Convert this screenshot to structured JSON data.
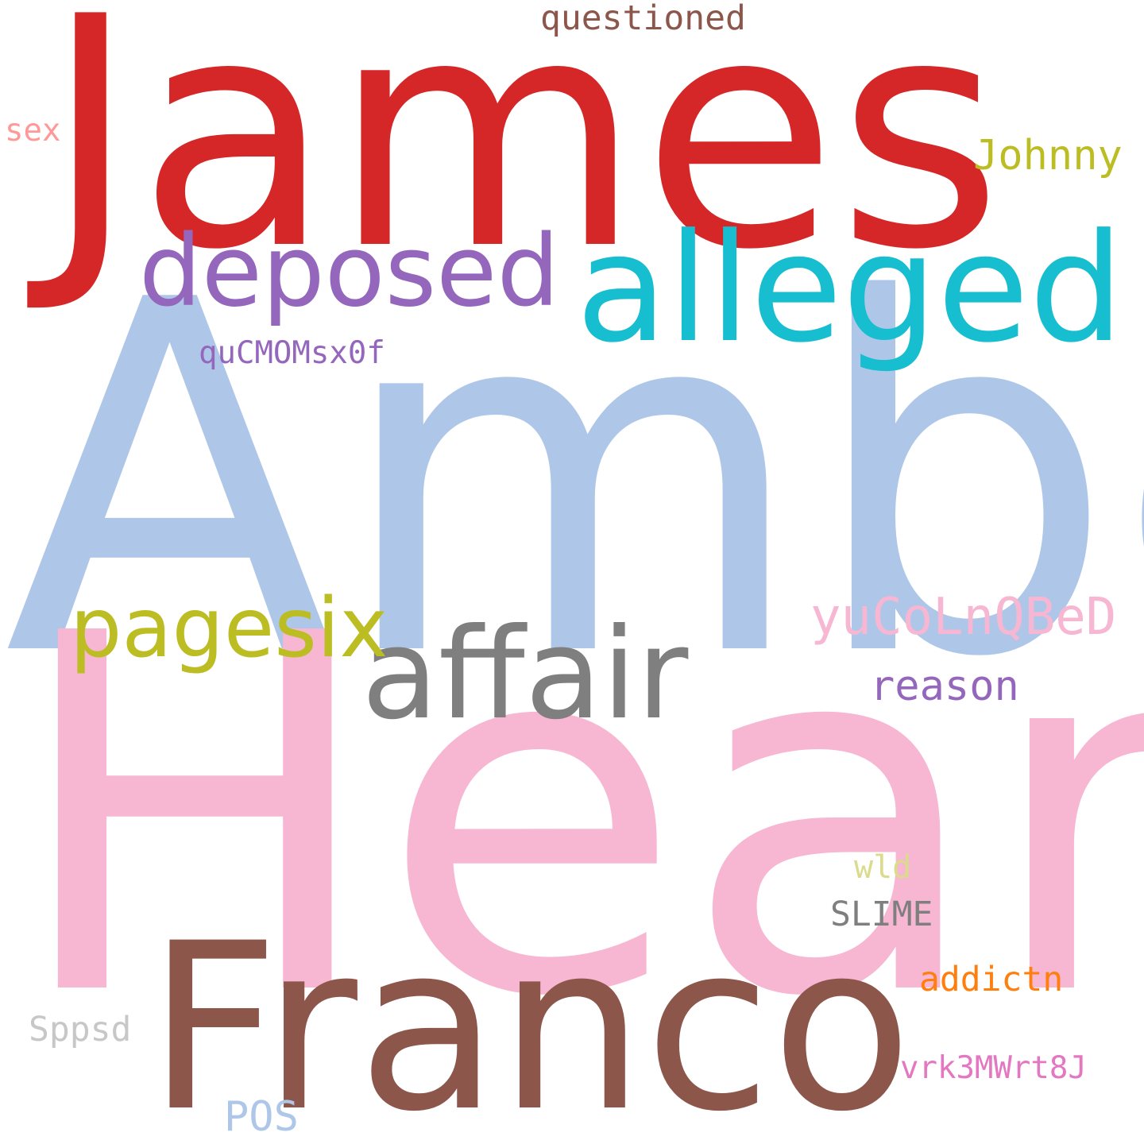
{
  "words": [
    {
      "id": "james",
      "text": "James",
      "color": "#d62728"
    },
    {
      "id": "amber",
      "text": "Amber",
      "color": "#aec7e8"
    },
    {
      "id": "heard",
      "text": "Heard",
      "color": "#f7b6d2"
    },
    {
      "id": "franco",
      "text": "Franco",
      "color": "#8c564b"
    },
    {
      "id": "alleged",
      "text": "alleged",
      "color": "#17becf"
    },
    {
      "id": "affair",
      "text": "affair",
      "color": "#7f7f7f"
    },
    {
      "id": "deposed",
      "text": "deposed",
      "color": "#9467bd"
    },
    {
      "id": "pagesix",
      "text": "pagesix",
      "color": "#bcbd22"
    },
    {
      "id": "yucolnqbed",
      "text": "yuCoLnQBeD",
      "color": "#f7b6d2"
    },
    {
      "id": "reason",
      "text": "reason",
      "color": "#9467bd"
    },
    {
      "id": "johnny",
      "text": "Johnny",
      "color": "#bcbd22"
    },
    {
      "id": "questioned",
      "text": "questioned",
      "color": "#8c564b"
    },
    {
      "id": "qucmomsx0f",
      "text": "quCMOMsx0f",
      "color": "#9467bd"
    },
    {
      "id": "sex",
      "text": "sex",
      "color": "#ff9896"
    },
    {
      "id": "wld",
      "text": "wld",
      "color": "#dbdb8d"
    },
    {
      "id": "slime",
      "text": "SLIME",
      "color": "#7f7f7f"
    },
    {
      "id": "addictn",
      "text": "addictn",
      "color": "#ff7f0e"
    },
    {
      "id": "sppsd",
      "text": "Sppsd",
      "color": "#c7c7c7"
    },
    {
      "id": "vrk3mwrt8j",
      "text": "vrk3MWrt8J",
      "color": "#e377c2"
    },
    {
      "id": "pos",
      "text": "POS",
      "color": "#aec7e8"
    }
  ]
}
